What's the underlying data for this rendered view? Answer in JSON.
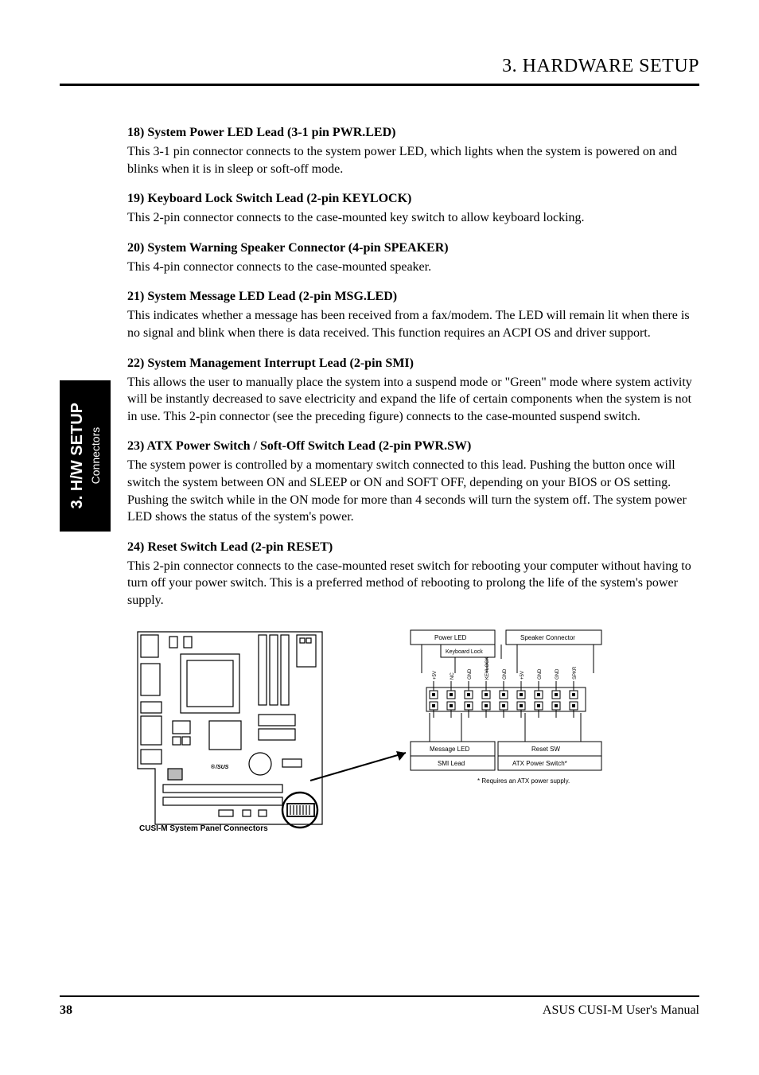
{
  "header": "3. HARDWARE SETUP",
  "side_tab": {
    "big": "3. H/W SETUP",
    "small": "Connectors"
  },
  "items": [
    {
      "label": "18) System Power LED Lead (3-1 pin PWR.LED)",
      "body": "This 3-1 pin connector connects to the system power LED, which lights when the system is powered on and blinks when it is in sleep or soft-off mode."
    },
    {
      "label": "19) Keyboard Lock Switch Lead (2-pin KEYLOCK)",
      "body": "This 2-pin connector connects to the case-mounted key switch to allow keyboard locking."
    },
    {
      "label": "20) System Warning Speaker Connector (4-pin SPEAKER)",
      "body": "This 4-pin connector connects to the case-mounted speaker."
    },
    {
      "label": "21) System Message LED Lead (2-pin MSG.LED)",
      "body": "This indicates whether a message has been received from a fax/modem. The LED will remain lit when there is no signal and blink when there is data received. This function requires an ACPI OS and driver support."
    },
    {
      "label": "22) System Management Interrupt Lead (2-pin SMI)",
      "body": "This allows the user to manually place the system into a suspend mode or \"Green\" mode where system activity will be instantly decreased to save electricity and expand the life of certain components when the system is not in use. This 2-pin connector (see the preceding figure) connects to the case-mounted suspend switch."
    },
    {
      "label": "23) ATX Power Switch / Soft-Off Switch Lead (2-pin PWR.SW)",
      "body": "The system power is controlled by a momentary switch connected to this lead. Pushing the button once will switch the system between ON and SLEEP or ON and SOFT OFF, depending on your BIOS or OS setting. Pushing the switch while in the ON mode for more than 4 seconds will turn the system off. The system power LED shows the status of the system's power."
    },
    {
      "label": "24) Reset Switch Lead (2-pin RESET)",
      "body": "This 2-pin connector connects to the case-mounted reset switch for rebooting your computer without having to turn off your power switch. This is a preferred method of rebooting to prolong the life of the system's power supply."
    }
  ],
  "diagram_caption": "CUSI-M System Panel Connectors",
  "panel": {
    "top_left": "Power LED",
    "top_right": "Speaker Connector",
    "header_box": "Keyboard Lock",
    "pins": [
      "+5V",
      "NC",
      "GND",
      "KEYLOCK",
      "GND",
      "+5V",
      "GND",
      "GND",
      "SPKR"
    ],
    "bottom_left_top": "Message LED",
    "bottom_left_bottom": "SMI Lead",
    "bottom_right_top": "Reset SW",
    "bottom_right_bottom": "ATX Power Switch*",
    "note": "* Requires an ATX power supply."
  },
  "footer": {
    "page": "38",
    "title": "ASUS CUSI-M User's Manual"
  }
}
